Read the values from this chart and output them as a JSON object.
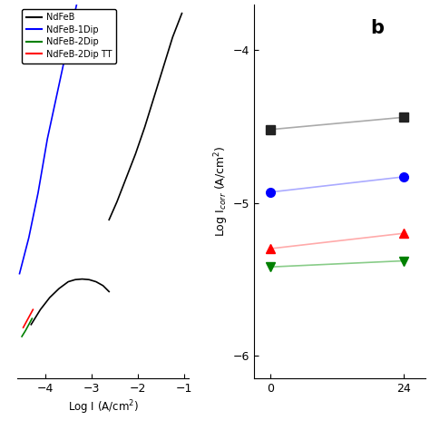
{
  "legend_labels": [
    "NdFeB",
    "NdFeB-1Dip",
    "NdFeB-2Dip",
    "NdFeB-2Dip TT"
  ],
  "legend_colors": [
    "black",
    "blue",
    "green",
    "red"
  ],
  "panel_b_label": "b",
  "panel_b_xlabel_ticks": [
    0,
    24
  ],
  "panel_b_ylabel": "Log I$_{corr}$ (A/cm$^{2}$)",
  "panel_b_ylim": [
    -6.15,
    -3.7
  ],
  "panel_b_yticks": [
    -6,
    -5,
    -4
  ],
  "panel_b_xlim": [
    -3,
    28
  ],
  "series_b": {
    "NdFeB": {
      "x": [
        0,
        24
      ],
      "y": [
        -4.52,
        -4.44
      ],
      "color": "#aaaaaa",
      "marker": "s",
      "mcolor": "#222222"
    },
    "NdFeB-1Dip": {
      "x": [
        0,
        24
      ],
      "y": [
        -4.93,
        -4.83
      ],
      "color": "#aaaaff",
      "marker": "o",
      "mcolor": "blue"
    },
    "NdFeB-2Dip TT": {
      "x": [
        0,
        24
      ],
      "y": [
        -5.3,
        -5.2
      ],
      "color": "#ffaaaa",
      "marker": "^",
      "mcolor": "red"
    },
    "NdFeB-2Dip": {
      "x": [
        0,
        24
      ],
      "y": [
        -5.42,
        -5.38
      ],
      "color": "#88cc88",
      "marker": "v",
      "mcolor": "green"
    }
  },
  "panel_a_xlim": [
    -4.6,
    -0.9
  ],
  "panel_a_ylim": [
    -1.3,
    -0.05
  ],
  "panel_a_xticks": [
    -4,
    -3,
    -2,
    -1
  ],
  "panel_a_xlabel": "Log I (A/cm$^{2}$)",
  "background": "white",
  "ndfeb_cat_x": [
    -4.3,
    -4.1,
    -3.9,
    -3.7,
    -3.5,
    -3.35,
    -3.2,
    -3.05,
    -2.9,
    -2.75,
    -2.62
  ],
  "ndfeb_cat_y": [
    -1.12,
    -1.07,
    -1.03,
    -1.0,
    -0.977,
    -0.97,
    -0.968,
    -0.97,
    -0.977,
    -0.99,
    -1.01
  ],
  "ndfeb_ano_x": [
    -2.62,
    -2.45,
    -2.25,
    -2.05,
    -1.85,
    -1.65,
    -1.45,
    -1.25,
    -1.05
  ],
  "ndfeb_ano_y": [
    -0.77,
    -0.71,
    -0.63,
    -0.55,
    -0.46,
    -0.36,
    -0.26,
    -0.16,
    -0.08
  ],
  "blue_x": [
    -4.55,
    -4.35,
    -4.15,
    -3.95,
    -3.7,
    -3.45,
    -3.2
  ],
  "blue_y": [
    -0.95,
    -0.83,
    -0.68,
    -0.5,
    -0.32,
    -0.14,
    0.03
  ],
  "green_x": [
    -4.5,
    -4.42,
    -4.35,
    -4.28
  ],
  "green_y": [
    -1.16,
    -1.14,
    -1.12,
    -1.1
  ],
  "red_x": [
    -4.47,
    -4.4,
    -4.33,
    -4.26
  ],
  "red_y": [
    -1.13,
    -1.11,
    -1.09,
    -1.07
  ]
}
